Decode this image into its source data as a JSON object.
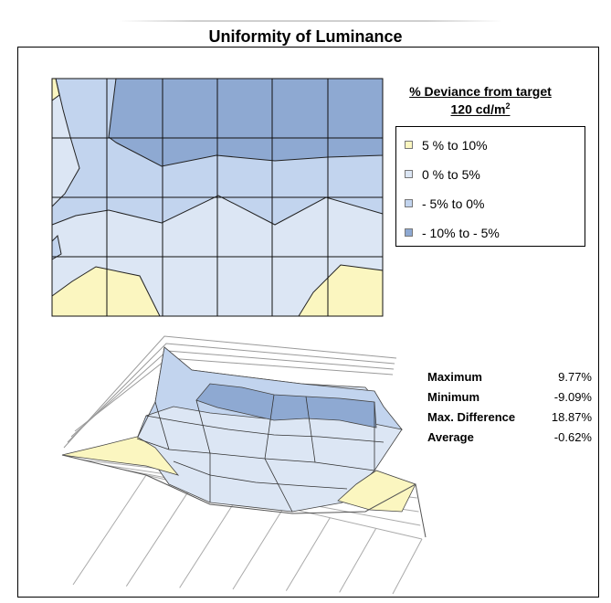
{
  "title": "Uniformity of Luminance",
  "legend": {
    "heading": "% Deviance from target",
    "target": "120 cd/m",
    "target_sup": "2",
    "items": [
      {
        "label": "5 %  to  10%",
        "color": "#fbf6c0"
      },
      {
        "label": "0 %  to  5%",
        "color": "#dce6f4"
      },
      {
        "label": "- 5%  to  0%",
        "color": "#c2d4ee"
      },
      {
        "label": "- 10%  to  - 5%",
        "color": "#8ea9d2"
      }
    ]
  },
  "stats": [
    {
      "label": "Maximum",
      "value": "9.77%"
    },
    {
      "label": "Minimum",
      "value": "-9.09%"
    },
    {
      "label": "Max. Difference",
      "value": "18.87%"
    },
    {
      "label": "Average",
      "value": "-0.62%"
    }
  ],
  "chart_data": [
    {
      "type": "heatmap",
      "title": "Uniformity of Luminance",
      "grid_columns": 6,
      "grid_rows": 4,
      "levels": [
        "5 %  to  10%",
        "0 %  to  5%",
        "- 5%  to  0%",
        "- 10%  to  - 5%"
      ],
      "level_colors": [
        "#fbf6c0",
        "#dce6f4",
        "#c2d4ee",
        "#8ea9d2"
      ]
    },
    {
      "type": "area",
      "description_3d_surface": true,
      "levels": [
        "5 %  to  10%",
        "0 %  to  5%",
        "- 5%  to  0%",
        "- 10%  to  - 5%"
      ]
    }
  ]
}
